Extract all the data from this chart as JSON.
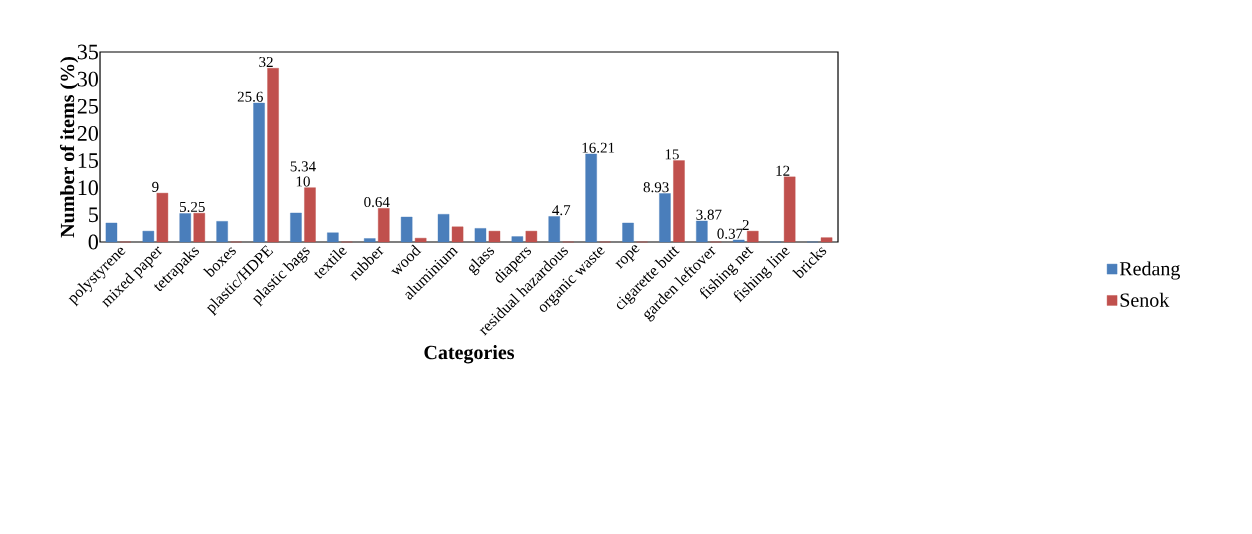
{
  "chart_data": {
    "type": "bar",
    "xlabel": "Categories",
    "ylabel": "Number of items (%)",
    "categories": [
      "polystyrene",
      "mixed paper",
      "tetrapaks",
      "boxes",
      "plastic/HDPE",
      "plastic bags",
      "textile",
      "rubber",
      "wood",
      "aluminium",
      "glass",
      "diapers",
      "residual hazardous",
      "organic waste",
      "rope",
      "cigarette butt",
      "garden leftover",
      "fishing net",
      "fishing line",
      "bricks"
    ],
    "series": [
      {
        "name": "Redang",
        "color": "#4a7ebb",
        "values": [
          3.5,
          2.0,
          5.25,
          3.8,
          25.6,
          5.34,
          1.7,
          0.64,
          4.6,
          5.1,
          2.5,
          1.0,
          4.7,
          16.21,
          3.5,
          8.93,
          3.87,
          0.37,
          0,
          0
        ],
        "value_labels": [
          null,
          null,
          "5.25",
          null,
          "25.6",
          "5.34",
          null,
          "0.64",
          null,
          null,
          null,
          null,
          "4.7",
          "16.21",
          null,
          "8.93",
          "3.87",
          "0.37",
          null,
          null
        ]
      },
      {
        "name": "Senok",
        "color": "#c0504d",
        "values": [
          0,
          9,
          5.3,
          0,
          32,
          10,
          0,
          6.2,
          0.7,
          2.8,
          2.0,
          2.0,
          0,
          0,
          0,
          15,
          0,
          2,
          12,
          0.8
        ],
        "value_labels": [
          null,
          "9",
          null,
          null,
          "32",
          "10",
          null,
          null,
          null,
          null,
          null,
          null,
          null,
          null,
          null,
          "15",
          null,
          "2",
          "12",
          null
        ]
      }
    ],
    "ylim": [
      0,
      35
    ],
    "yticks": [
      0,
      5,
      10,
      15,
      20,
      25,
      30,
      35
    ],
    "legend": "right",
    "grid": false
  }
}
